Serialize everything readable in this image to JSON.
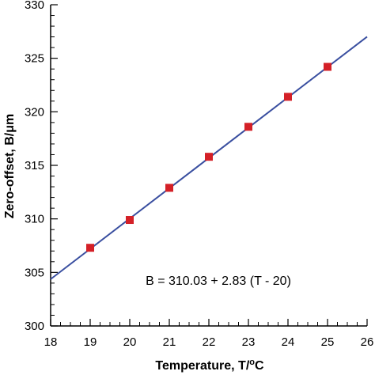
{
  "chart_data": {
    "type": "scatter",
    "xlabel": "Temperature, T/",
    "xlabel_unit_sup": "o",
    "xlabel_unit_tail": "C",
    "ylabel": "Zero-offset, B/μm",
    "xlim": [
      18,
      26
    ],
    "ylim": [
      300,
      330
    ],
    "x_ticks": [
      18,
      19,
      20,
      21,
      22,
      23,
      24,
      25,
      26
    ],
    "x_tick_labels": [
      "18",
      "19",
      "20",
      "21",
      "22",
      "23",
      "24",
      "25",
      "26"
    ],
    "y_ticks": [
      300,
      305,
      310,
      315,
      320,
      325,
      330
    ],
    "y_tick_labels": [
      "300",
      "305",
      "310",
      "315",
      "320",
      "325",
      "330"
    ],
    "grid": false,
    "series": [
      {
        "x": [
          19,
          20,
          21,
          22,
          23,
          24,
          25
        ],
        "y": [
          307.3,
          309.9,
          312.9,
          315.8,
          318.6,
          321.4,
          324.2
        ],
        "marker": "square",
        "color": "#d42027"
      }
    ],
    "fit_line": {
      "intercept": 310.03,
      "slope": 2.83,
      "x0": 20,
      "color": "#3a4fa0"
    },
    "annotation": "B = 310.03 + 2.83 (T - 20)"
  }
}
